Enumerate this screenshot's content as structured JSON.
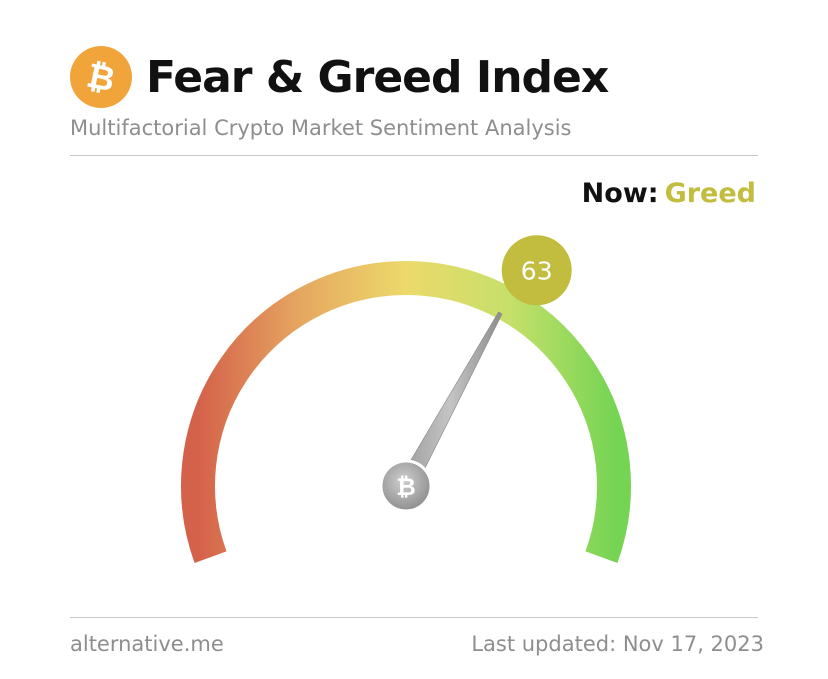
{
  "header": {
    "logo_icon": "bitcoin-icon",
    "title": "Fear & Greed Index",
    "subtitle": "Multifactorial Crypto Market Sentiment Analysis"
  },
  "status": {
    "now_label": "Now:",
    "classification": "Greed",
    "classification_color": "#c2bd3e"
  },
  "gauge": {
    "value": 63,
    "min": 0,
    "max": 100,
    "value_label": "63",
    "badge_color": "#c2bd3e",
    "center_icon": "bitcoin-icon",
    "colors": {
      "fear": "#d9654a",
      "neutral": "#ecd96b",
      "greed": "#7ed85a"
    }
  },
  "footer": {
    "source": "alternative.me",
    "last_updated": "Last updated: Nov 17, 2023"
  }
}
